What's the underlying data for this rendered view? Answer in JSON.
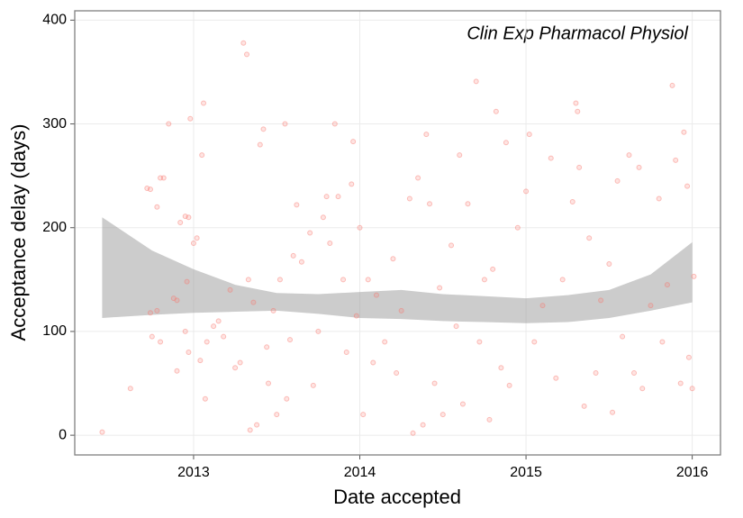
{
  "chart_data": {
    "type": "scatter",
    "annotation": "Clin Exp Pharmacol Physiol",
    "x_label": "Date accepted",
    "y_label": "Acceptance delay (days)",
    "xlim": [
      2012.285,
      2016.17
    ],
    "xticks": [
      2013,
      2014,
      2015,
      2016
    ],
    "ylim": [
      -19,
      409
    ],
    "yticks": [
      0,
      100,
      200,
      300,
      400
    ],
    "grid": true,
    "series": [
      {
        "color": "#f8766d",
        "x": [
          2012.45,
          2012.62,
          2012.72,
          2012.74,
          2012.78,
          2012.8,
          2012.82,
          2012.78,
          2012.74,
          2012.85,
          2012.88,
          2012.9,
          2012.92,
          2012.95,
          2012.97,
          2012.98,
          2013.0,
          2012.96,
          2012.95,
          2012.97,
          2012.9,
          2012.8,
          2012.75,
          2013.02,
          2013.04,
          2013.05,
          2013.06,
          2013.07,
          2013.08,
          2013.12,
          2013.15,
          2013.18,
          2013.22,
          2013.25,
          2013.28,
          2013.3,
          2013.32,
          2013.33,
          2013.34,
          2013.36,
          2013.38,
          2013.4,
          2013.42,
          2013.44,
          2013.45,
          2013.48,
          2013.5,
          2013.52,
          2013.55,
          2013.56,
          2013.58,
          2013.6,
          2013.62,
          2013.65,
          2013.7,
          2013.72,
          2013.75,
          2013.78,
          2013.8,
          2013.82,
          2013.85,
          2013.87,
          2013.9,
          2013.92,
          2013.95,
          2013.96,
          2013.98,
          2014.0,
          2014.02,
          2014.05,
          2014.08,
          2014.1,
          2014.15,
          2014.2,
          2014.22,
          2014.25,
          2014.3,
          2014.32,
          2014.35,
          2014.38,
          2014.4,
          2014.42,
          2014.45,
          2014.48,
          2014.5,
          2014.55,
          2014.58,
          2014.6,
          2014.62,
          2014.65,
          2014.7,
          2014.72,
          2014.75,
          2014.78,
          2014.8,
          2014.82,
          2014.85,
          2014.88,
          2014.9,
          2014.95,
          2015.0,
          2015.02,
          2015.05,
          2015.1,
          2015.15,
          2015.18,
          2015.22,
          2015.28,
          2015.3,
          2015.31,
          2015.32,
          2015.35,
          2015.38,
          2015.42,
          2015.45,
          2015.5,
          2015.52,
          2015.55,
          2015.58,
          2015.62,
          2015.65,
          2015.68,
          2015.7,
          2015.75,
          2015.8,
          2015.82,
          2015.85,
          2015.88,
          2015.9,
          2015.93,
          2015.95,
          2015.97,
          2015.98,
          2016.0,
          2016.01
        ],
        "values": [
          3,
          45,
          238,
          237,
          220,
          248,
          248,
          120,
          118,
          300,
          132,
          130,
          205,
          211,
          210,
          305,
          185,
          148,
          100,
          80,
          62,
          90,
          95,
          190,
          72,
          270,
          320,
          35,
          90,
          105,
          110,
          95,
          140,
          65,
          70,
          378,
          367,
          150,
          5,
          128,
          10,
          280,
          295,
          85,
          50,
          120,
          20,
          150,
          300,
          35,
          92,
          173,
          222,
          167,
          195,
          48,
          100,
          210,
          230,
          185,
          300,
          230,
          150,
          80,
          242,
          283,
          115,
          200,
          20,
          150,
          70,
          135,
          90,
          170,
          60,
          120,
          228,
          2,
          248,
          10,
          290,
          223,
          50,
          142,
          20,
          183,
          105,
          270,
          30,
          223,
          341,
          90,
          150,
          15,
          160,
          312,
          65,
          282,
          48,
          200,
          235,
          290,
          90,
          125,
          267,
          55,
          150,
          225,
          320,
          312,
          258,
          28,
          190,
          60,
          130,
          165,
          22,
          245,
          95,
          270,
          60,
          258,
          45,
          125,
          228,
          90,
          145,
          337,
          265,
          50,
          292,
          240,
          75,
          45,
          153
        ]
      }
    ],
    "band": {
      "color": "#999999",
      "x": [
        2012.45,
        2012.75,
        2013.0,
        2013.25,
        2013.5,
        2013.75,
        2014.0,
        2014.25,
        2014.5,
        2014.75,
        2015.0,
        2015.25,
        2015.5,
        2015.75,
        2016.0
      ],
      "upper": [
        210,
        178,
        160,
        145,
        137,
        136,
        138,
        140,
        136,
        134,
        132,
        135,
        140,
        155,
        186
      ],
      "lower": [
        113,
        116,
        118,
        119,
        120,
        117,
        113,
        112,
        110,
        109,
        108,
        109,
        113,
        120,
        128
      ]
    }
  }
}
